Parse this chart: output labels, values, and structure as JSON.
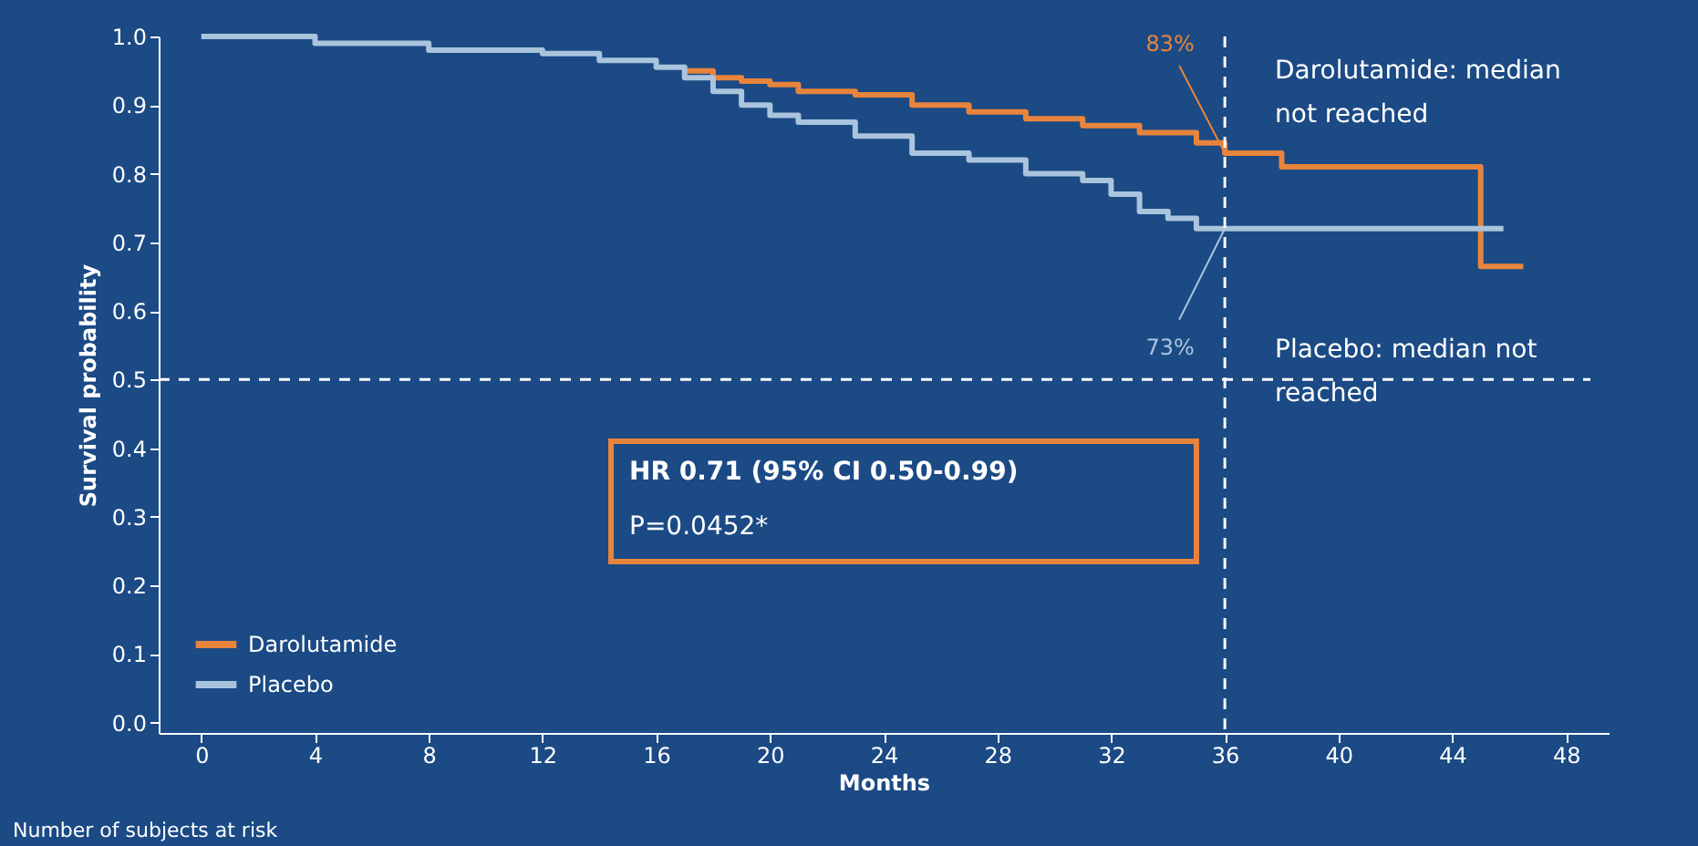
{
  "chart_data": {
    "type": "step",
    "xlabel": "Months",
    "ylabel": "Survival probability",
    "xlim": [
      -1.5,
      49.5
    ],
    "xticks": [
      0,
      4,
      8,
      12,
      16,
      20,
      24,
      28,
      32,
      36,
      40,
      44,
      48
    ],
    "ylim": [
      -0.015,
      1.0
    ],
    "yticks": [
      {
        "value": 0,
        "label": "0.0"
      },
      0.1,
      0.2,
      0.3,
      0.4,
      0.5,
      0.6,
      0.7,
      0.8,
      0.9,
      {
        "value": 1,
        "label": "1.0"
      }
    ],
    "series": [
      {
        "name": "Darolutamide",
        "color": "#e8843c",
        "x": [
          17,
          18,
          19,
          20,
          21,
          23,
          25,
          27,
          29,
          31,
          33,
          35,
          36,
          38,
          45,
          46.5
        ],
        "values": [
          0.95,
          0.94,
          0.935,
          0.93,
          0.92,
          0.915,
          0.9,
          0.89,
          0.88,
          0.87,
          0.86,
          0.845,
          0.83,
          0.81,
          0.665,
          0.665
        ]
      },
      {
        "name": "Placebo",
        "color": "#a9c4dc",
        "x": [
          0,
          4,
          8,
          12,
          14,
          16,
          17,
          18,
          19,
          20,
          21,
          23,
          25,
          27,
          29,
          31,
          32,
          33,
          34,
          35,
          45.8
        ],
        "values": [
          1.0,
          0.99,
          0.98,
          0.975,
          0.965,
          0.955,
          0.94,
          0.92,
          0.9,
          0.885,
          0.875,
          0.855,
          0.83,
          0.82,
          0.8,
          0.79,
          0.77,
          0.745,
          0.735,
          0.72,
          0.72
        ]
      }
    ],
    "ref_lines": [
      {
        "axis": "y",
        "value": 0.5,
        "color": "#ffffff",
        "line_style": "dashed"
      },
      {
        "axis": "x",
        "value": 36,
        "color": "#ffffff",
        "line_style": "dashed"
      }
    ],
    "annotations": [
      {
        "text": "83%",
        "x": 36,
        "y": 0.83
      },
      {
        "text": "73%",
        "x": 36,
        "y": 0.72
      },
      "Darolutamide: median not reached",
      "Placebo: median not reached",
      "HR 0.71 (95% CI 0.50-0.99)",
      "P=0.0452*",
      "Number of subjects at risk"
    ],
    "grid": false,
    "legend": "bottom left",
    "marker": "none",
    "line_style": "solid"
  }
}
